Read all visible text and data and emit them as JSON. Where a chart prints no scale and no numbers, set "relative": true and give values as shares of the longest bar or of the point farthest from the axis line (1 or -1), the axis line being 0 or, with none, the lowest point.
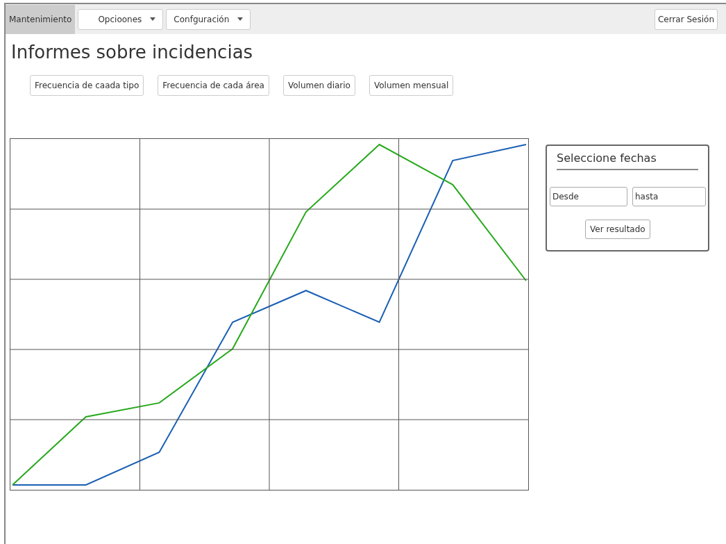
{
  "chart_data": [
    {
      "type": "other",
      "annotations": [
        "Mantenimiento",
        "Opcioones",
        "Confguración",
        "Cerrar Sesión"
      ]
    },
    {
      "type": "other",
      "title": "Informes sobre incidencias",
      "annotations": [
        "Frecuencia de caada tipo",
        "Frecuencia de cada área",
        "Volumen diario",
        "Volumen mensual"
      ]
    },
    {
      "type": "line",
      "relative": true,
      "grid": true,
      "marker": "none",
      "line_style": "solid",
      "categories": [
        null,
        null,
        null,
        null,
        null,
        null,
        null,
        null
      ],
      "series": [
        {
          "color": "#1a5fb4",
          "values": [
            0,
            0,
            0.096,
            0.478,
            0.571,
            0.478,
            0.953,
            1.0
          ]
        },
        {
          "color": "#26a91b",
          "values": [
            0,
            0.2,
            0.241,
            0.4,
            0.802,
            1.0,
            0.882,
            0.6
          ]
        }
      ]
    },
    {
      "type": "other",
      "title": "Seleccione fechas",
      "annotations": [
        "Desde",
        "hasta",
        "Ver resultado"
      ]
    }
  ]
}
